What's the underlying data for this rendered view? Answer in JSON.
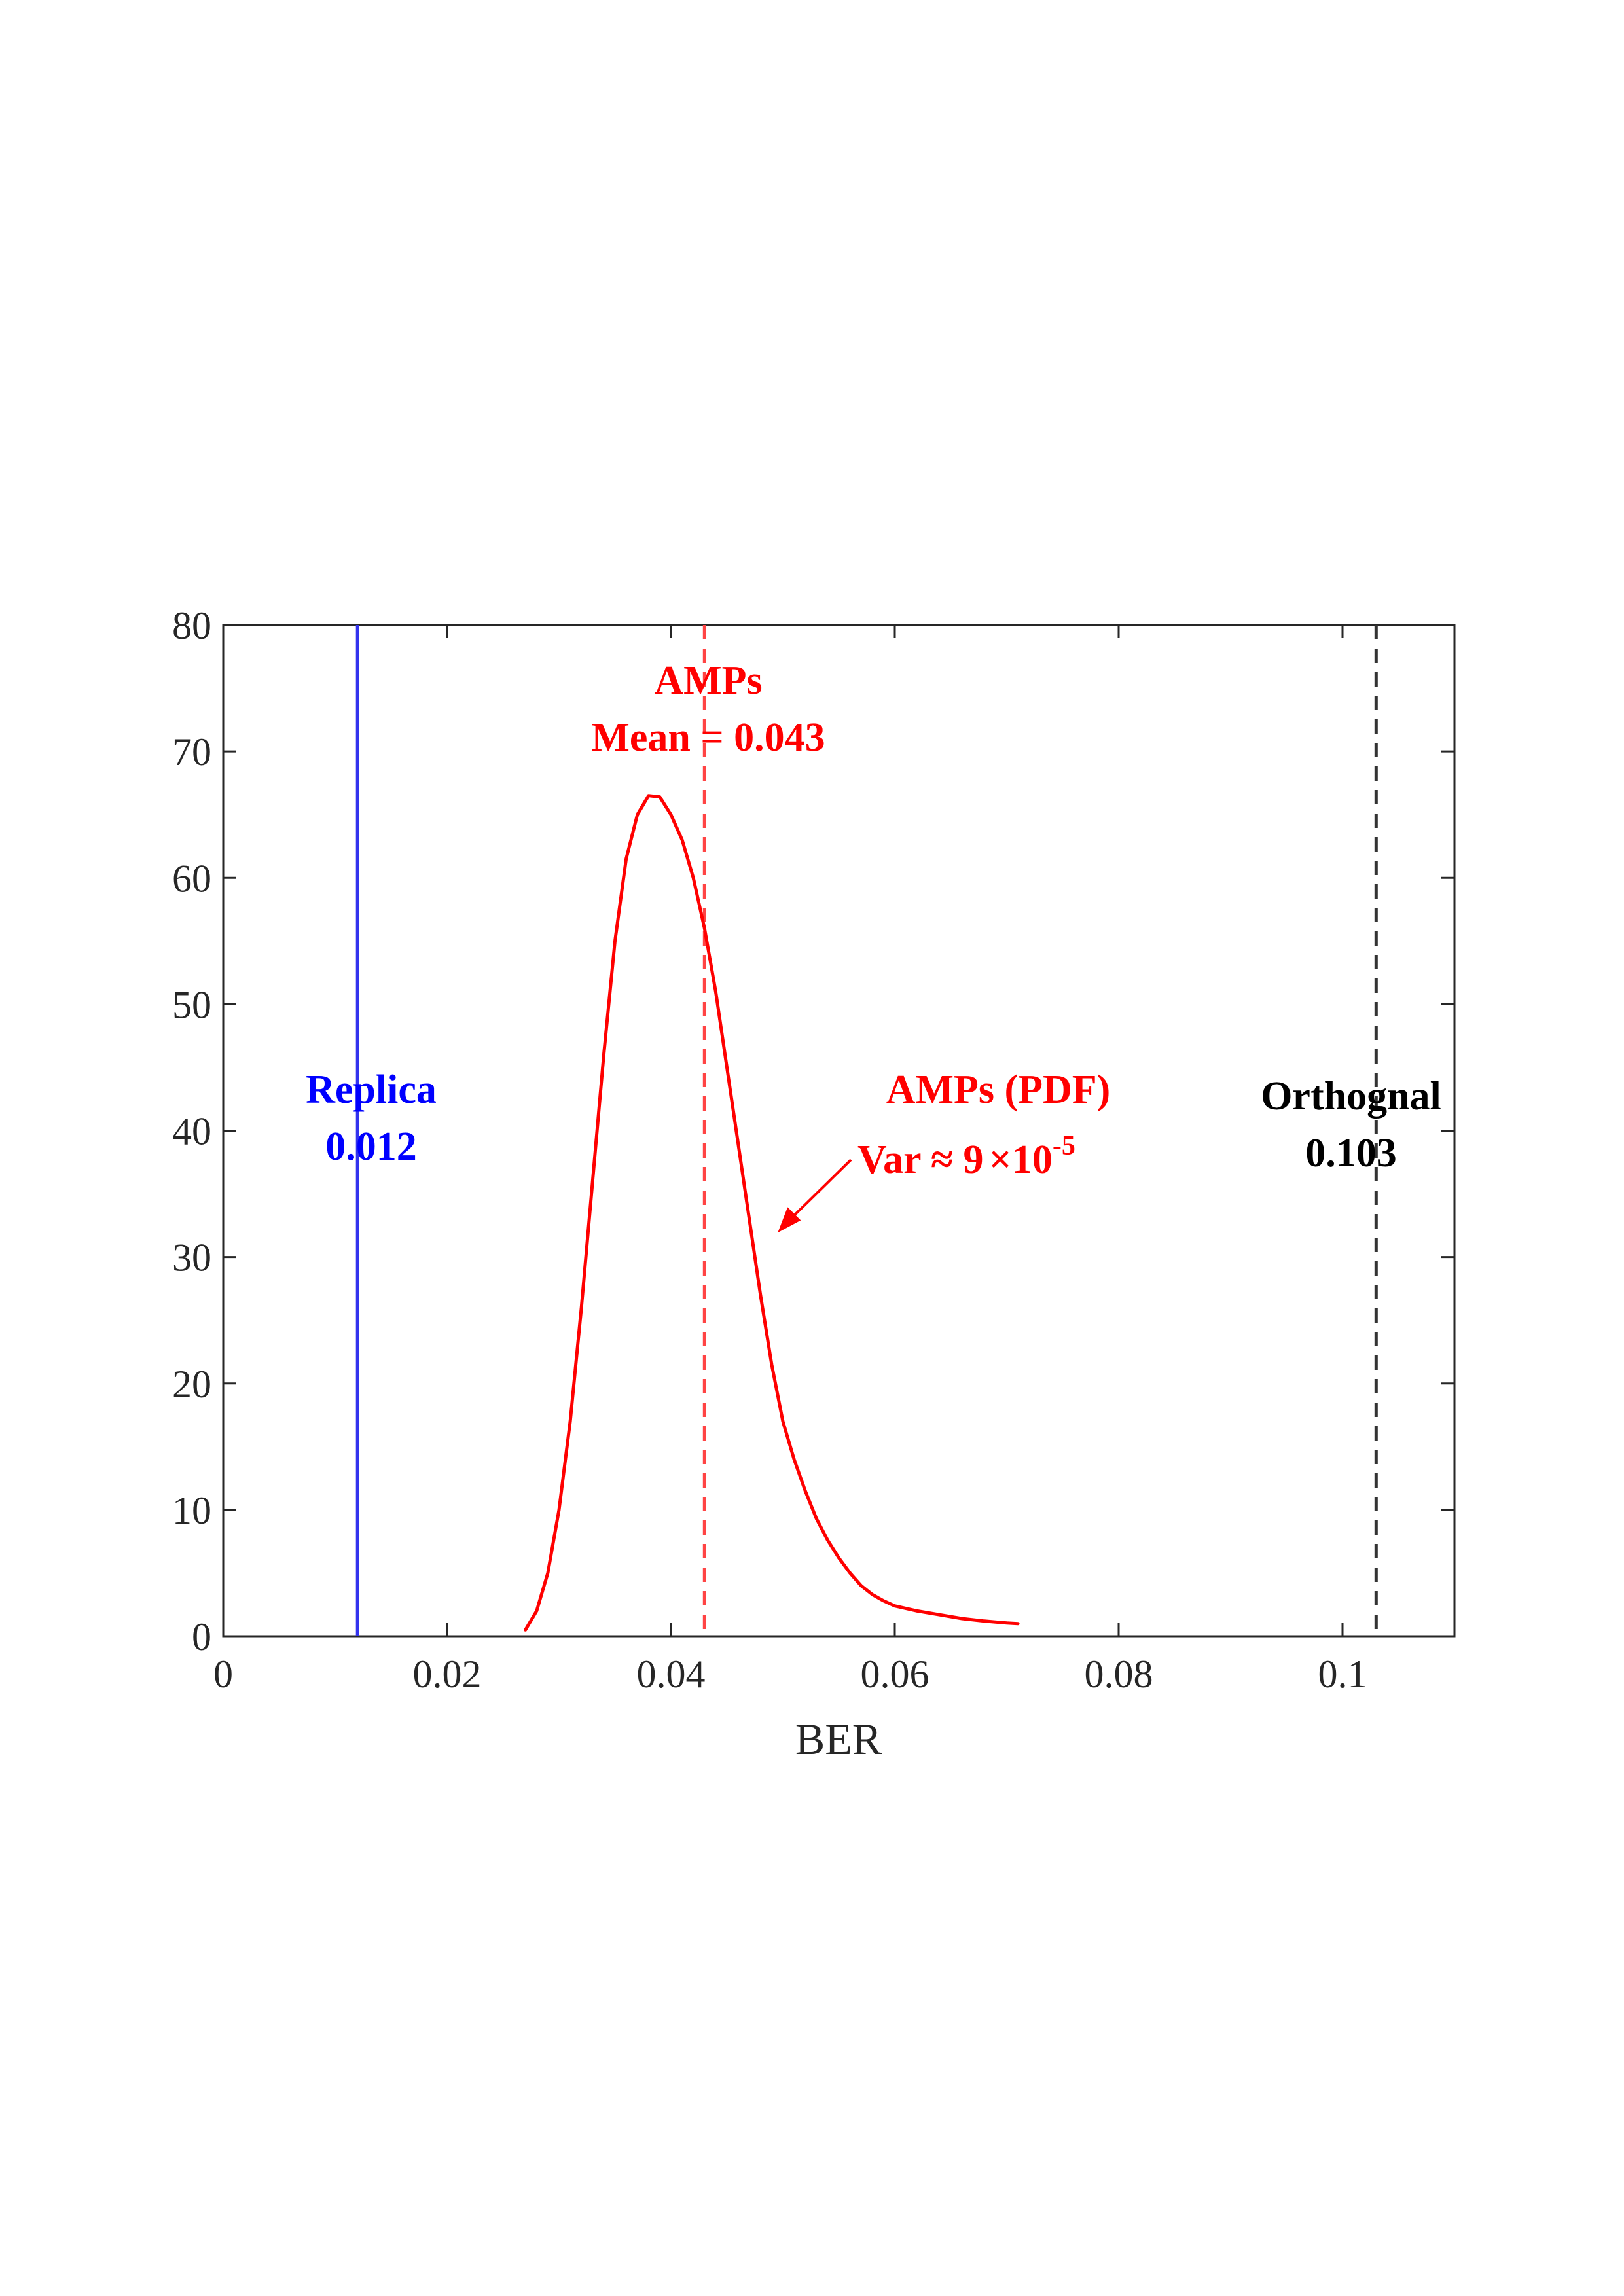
{
  "chart_data": {
    "type": "line",
    "title": "",
    "xlabel": "BER",
    "ylabel": "",
    "xlim": [
      0,
      0.11
    ],
    "ylim": [
      0,
      80
    ],
    "grid": false,
    "x_ticks": [
      0,
      0.02,
      0.04,
      0.06,
      0.08,
      0.1
    ],
    "x_tick_labels": [
      "0",
      "0.02",
      "0.04",
      "0.06",
      "0.08",
      "0.1"
    ],
    "y_ticks": [
      0,
      10,
      20,
      30,
      40,
      50,
      60,
      70,
      80
    ],
    "y_tick_labels": [
      "0",
      "10",
      "20",
      "30",
      "40",
      "50",
      "60",
      "70",
      "80"
    ],
    "series": [
      {
        "name": "AMPs (PDF)",
        "style": "solid",
        "color": "#ff0000",
        "x": [
          0.027,
          0.028,
          0.029,
          0.03,
          0.031,
          0.032,
          0.033,
          0.034,
          0.035,
          0.036,
          0.037,
          0.038,
          0.039,
          0.04,
          0.041,
          0.042,
          0.043,
          0.044,
          0.045,
          0.046,
          0.047,
          0.048,
          0.049,
          0.05,
          0.051,
          0.052,
          0.053,
          0.054,
          0.055,
          0.056,
          0.057,
          0.058,
          0.059,
          0.06,
          0.062,
          0.064,
          0.066,
          0.068,
          0.07,
          0.071
        ],
        "y": [
          0.5,
          2.0,
          5.0,
          10.0,
          17.0,
          26.0,
          36.0,
          46.0,
          55.0,
          61.5,
          65.0,
          66.5,
          66.4,
          65.0,
          63.0,
          60.0,
          56.0,
          51.0,
          45.0,
          39.0,
          33.0,
          27.0,
          21.5,
          17.0,
          14.0,
          11.5,
          9.3,
          7.6,
          6.2,
          5.0,
          4.0,
          3.3,
          2.8,
          2.4,
          2.0,
          1.7,
          1.4,
          1.2,
          1.05,
          1.0
        ]
      }
    ],
    "vertical_lines": [
      {
        "name": "Replica",
        "x": 0.012,
        "style": "solid",
        "color": "#3333ee"
      },
      {
        "name": "AMPs mean",
        "x": 0.043,
        "style": "dashed",
        "color": "#ff4444"
      },
      {
        "name": "Orthognal",
        "x": 0.103,
        "style": "dashed",
        "color": "#333333"
      }
    ],
    "annotations": {
      "replica": {
        "line1": "Replica",
        "line2": "0.012",
        "color": "#0000ff"
      },
      "amps_mean": {
        "line1": "AMPs",
        "line2": "Mean = 0.043",
        "color": "#ff0000"
      },
      "amps_pdf": {
        "line1": "AMPs (PDF)",
        "var_text": "Var ≈ 9",
        "times": "×",
        "base": "10",
        "exponent": "-5",
        "color": "#ff0000"
      },
      "orthognal": {
        "line1": "Orthognal",
        "line2": "0.103",
        "color": "#000000"
      }
    }
  }
}
